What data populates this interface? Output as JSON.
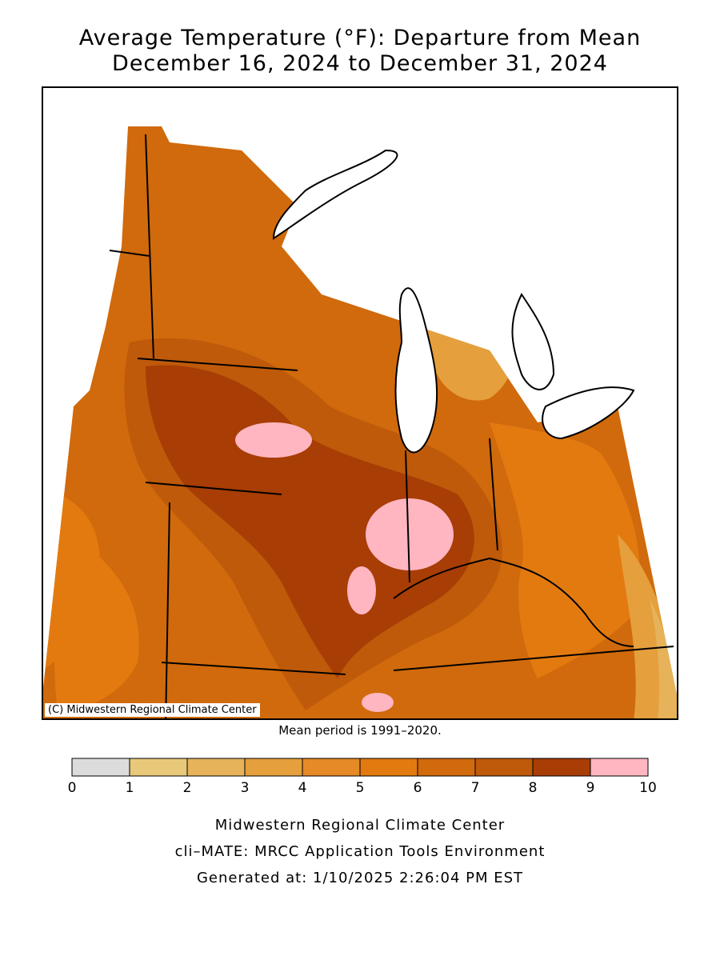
{
  "title_line1": "Average Temperature (°F): Departure from Mean",
  "title_line2": "December 16, 2024 to December 31, 2024",
  "copyright": "(C) Midwestern Regional Climate Center",
  "mean_period": "Mean period is 1991–2020.",
  "legend": {
    "ticks": [
      "0",
      "1",
      "2",
      "3",
      "4",
      "5",
      "6",
      "7",
      "8",
      "9",
      "10"
    ],
    "colors": [
      "#dcdcdc",
      "#e8c97a",
      "#e6b35a",
      "#e59f3d",
      "#e58a26",
      "#e37a10",
      "#d06a0c",
      "#bf5a0a",
      "#a83d05",
      "#ffb6c1"
    ]
  },
  "footer": {
    "line1": "Midwestern Regional Climate Center",
    "line2": "cli–MATE: MRCC Application Tools Environment",
    "line3": "Generated at: 1/10/2025 2:26:04 PM EST"
  },
  "map_colors": {
    "base": "#d06a0c",
    "darker": "#bf5a0a",
    "darkest": "#a83d05",
    "mid": "#e37a10",
    "light": "#e59f3d",
    "lighter": "#e6b35a",
    "pink": "#ffb6c1",
    "water": "#ffffff"
  }
}
